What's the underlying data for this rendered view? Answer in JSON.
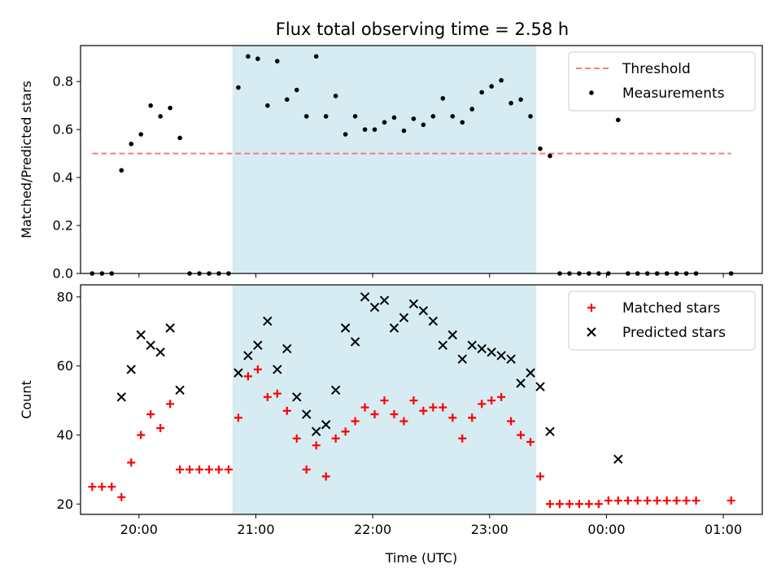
{
  "title": "Flux total observing time = 2.58 h",
  "chart_data": [
    {
      "type": "scatter",
      "ylabel": "Matched/Predicted stars",
      "xlim": [
        "19:30",
        "01:20"
      ],
      "ylim": [
        0,
        0.95
      ],
      "yticks": [
        "0.0",
        "0.2",
        "0.4",
        "0.6",
        "0.8"
      ],
      "grid": false,
      "legend": "top-right",
      "shaded_window": [
        "20:48",
        "23:24"
      ],
      "threshold": {
        "name": "Threshold",
        "value": 0.5,
        "x_range": [
          "19:36",
          "01:04"
        ],
        "color": "#f08080",
        "style": "dashed"
      },
      "series": [
        {
          "name": "Measurements",
          "color": "#000000",
          "marker": "dot",
          "x": [
            "19:36",
            "19:41",
            "19:46",
            "19:51",
            "19:56",
            "20:01",
            "20:06",
            "20:11",
            "20:16",
            "20:21",
            "20:26",
            "20:31",
            "20:36",
            "20:41",
            "20:46",
            "20:51",
            "20:56",
            "21:01",
            "21:06",
            "21:11",
            "21:16",
            "21:21",
            "21:26",
            "21:31",
            "21:36",
            "21:41",
            "21:46",
            "21:51",
            "21:56",
            "22:01",
            "22:06",
            "22:11",
            "22:16",
            "22:21",
            "22:26",
            "22:31",
            "22:36",
            "22:41",
            "22:46",
            "22:51",
            "22:56",
            "23:01",
            "23:06",
            "23:11",
            "23:16",
            "23:21",
            "23:26",
            "23:31",
            "23:36",
            "23:41",
            "23:46",
            "23:51",
            "23:56",
            "00:01",
            "00:06",
            "00:11",
            "00:16",
            "00:21",
            "00:26",
            "00:31",
            "00:36",
            "00:41",
            "00:46",
            "01:04"
          ],
          "y": [
            0,
            0,
            0,
            0.43,
            0.54,
            0.58,
            0.7,
            0.655,
            0.69,
            0.565,
            0,
            0,
            0,
            0,
            0,
            0.775,
            0.905,
            0.895,
            0.7,
            0.885,
            0.725,
            0.765,
            0.655,
            0.905,
            0.655,
            0.74,
            0.58,
            0.655,
            0.6,
            0.6,
            0.63,
            0.65,
            0.595,
            0.645,
            0.62,
            0.655,
            0.73,
            0.655,
            0.63,
            0.685,
            0.755,
            0.78,
            0.805,
            0.71,
            0.725,
            0.655,
            0.52,
            0.49,
            0,
            0,
            0,
            0,
            0,
            0,
            0.64,
            0,
            0,
            0,
            0,
            0,
            0,
            0,
            0,
            0
          ]
        }
      ]
    },
    {
      "type": "scatter",
      "ylabel": "Count",
      "xlabel": "Time (UTC)",
      "xlim": [
        "19:30",
        "01:20"
      ],
      "ylim": [
        17,
        83.5
      ],
      "yticks": [
        "20",
        "40",
        "60",
        "80"
      ],
      "xticks": [
        "20:00",
        "21:00",
        "22:00",
        "23:00",
        "00:00",
        "01:00"
      ],
      "grid": false,
      "legend": "top-right",
      "shaded_window": [
        "20:48",
        "23:24"
      ],
      "series": [
        {
          "name": "Matched stars",
          "color": "#ff0000",
          "marker": "plus",
          "x": [
            "19:36",
            "19:41",
            "19:46",
            "19:51",
            "19:56",
            "20:01",
            "20:06",
            "20:11",
            "20:16",
            "20:21",
            "20:26",
            "20:31",
            "20:36",
            "20:41",
            "20:46",
            "20:51",
            "20:56",
            "21:01",
            "21:06",
            "21:11",
            "21:16",
            "21:21",
            "21:26",
            "21:31",
            "21:36",
            "21:41",
            "21:46",
            "21:51",
            "21:56",
            "22:01",
            "22:06",
            "22:11",
            "22:16",
            "22:21",
            "22:26",
            "22:31",
            "22:36",
            "22:41",
            "22:46",
            "22:51",
            "22:56",
            "23:01",
            "23:06",
            "23:11",
            "23:16",
            "23:21",
            "23:26",
            "23:31",
            "23:36",
            "23:41",
            "23:46",
            "23:51",
            "23:56",
            "00:01",
            "00:06",
            "00:11",
            "00:16",
            "00:21",
            "00:26",
            "00:31",
            "00:36",
            "00:41",
            "00:46",
            "01:04"
          ],
          "y": [
            25,
            25,
            25,
            22,
            32,
            40,
            46,
            42,
            49,
            30,
            30,
            30,
            30,
            30,
            30,
            45,
            57,
            59,
            51,
            52,
            47,
            39,
            30,
            37,
            28,
            39,
            41,
            44,
            48,
            46,
            50,
            46,
            44,
            50,
            47,
            48,
            48,
            45,
            39,
            45,
            49,
            50,
            51,
            44,
            40,
            38,
            28,
            20,
            20,
            20,
            20,
            20,
            20,
            21,
            21,
            21,
            21,
            21,
            21,
            21,
            21,
            21,
            21,
            21
          ]
        },
        {
          "name": "Predicted stars",
          "color": "#000000",
          "marker": "x",
          "x": [
            "19:51",
            "19:56",
            "20:01",
            "20:06",
            "20:11",
            "20:16",
            "20:21",
            "20:51",
            "20:56",
            "21:01",
            "21:06",
            "21:11",
            "21:16",
            "21:21",
            "21:26",
            "21:31",
            "21:36",
            "21:41",
            "21:46",
            "21:51",
            "21:56",
            "22:01",
            "22:06",
            "22:11",
            "22:16",
            "22:21",
            "22:26",
            "22:31",
            "22:36",
            "22:41",
            "22:46",
            "22:51",
            "22:56",
            "23:01",
            "23:06",
            "23:11",
            "23:16",
            "23:21",
            "23:26",
            "23:31",
            "00:06"
          ],
          "y": [
            51,
            59,
            69,
            66,
            64,
            71,
            53,
            58,
            63,
            66,
            73,
            59,
            65,
            51,
            46,
            41,
            43,
            53,
            71,
            67,
            80,
            77,
            79,
            71,
            74,
            78,
            76,
            73,
            66,
            69,
            62,
            66,
            65,
            64,
            63,
            62,
            55,
            58,
            54,
            41,
            33
          ]
        }
      ]
    }
  ]
}
